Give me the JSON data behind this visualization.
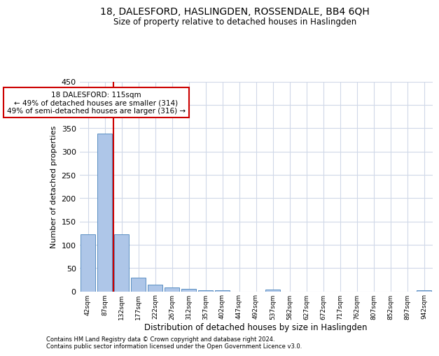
{
  "title1": "18, DALESFORD, HASLINGDEN, ROSSENDALE, BB4 6QH",
  "title2": "Size of property relative to detached houses in Haslingden",
  "xlabel": "Distribution of detached houses by size in Haslingden",
  "ylabel": "Number of detached properties",
  "footnote1": "Contains HM Land Registry data © Crown copyright and database right 2024.",
  "footnote2": "Contains public sector information licensed under the Open Government Licence v3.0.",
  "annotation_line1": "18 DALESFORD: 115sqm",
  "annotation_line2": "← 49% of detached houses are smaller (314)",
  "annotation_line3": "49% of semi-detached houses are larger (316) →",
  "property_size_sqm": 115,
  "bar_categories": [
    "42sqm",
    "87sqm",
    "132sqm",
    "177sqm",
    "222sqm",
    "267sqm",
    "312sqm",
    "357sqm",
    "402sqm",
    "447sqm",
    "492sqm",
    "537sqm",
    "582sqm",
    "627sqm",
    "672sqm",
    "717sqm",
    "762sqm",
    "807sqm",
    "852sqm",
    "897sqm",
    "942sqm"
  ],
  "bar_values": [
    122,
    338,
    122,
    30,
    15,
    8,
    5,
    3,
    3,
    0,
    0,
    4,
    0,
    0,
    0,
    0,
    0,
    0,
    0,
    0,
    3
  ],
  "bar_color": "#aec6e8",
  "bar_edge_color": "#5a8fc2",
  "property_line_color": "#cc0000",
  "annotation_box_color": "#cc0000",
  "background_color": "#ffffff",
  "grid_color": "#d0d8e8",
  "ylim": [
    0,
    450
  ],
  "yticks": [
    0,
    50,
    100,
    150,
    200,
    250,
    300,
    350,
    400,
    450
  ]
}
